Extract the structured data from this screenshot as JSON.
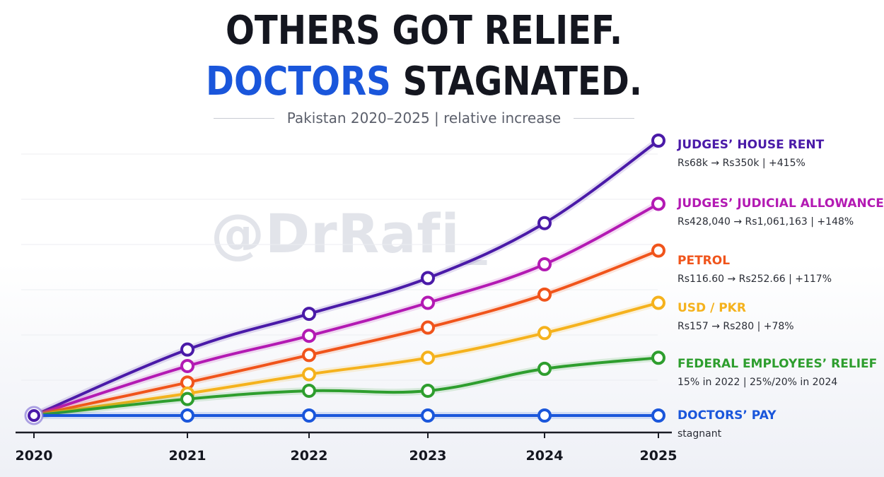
{
  "title": {
    "line1": "OTHERS GOT RELIEF.",
    "line2_highlight": "DOCTORS",
    "line2_rest": " STAGNATED."
  },
  "subtitle": "Pakistan 2020–2025 | relative increase",
  "watermark": "@DrRafi_",
  "colors": {
    "title": "#14161f",
    "highlight": "#1a56db",
    "axis": "#1b1d26"
  },
  "chart_data": {
    "type": "line",
    "title": "OTHERS GOT RELIEF. DOCTORS STAGNATED.",
    "subtitle": "Pakistan 2020–2025 | relative increase",
    "x": [
      "2020",
      "2021",
      "2022",
      "2023",
      "2024",
      "2025"
    ],
    "ylim": [
      0,
      100
    ],
    "grid": true,
    "legend_placement": "right",
    "series": [
      {
        "name": "JUDGES’ HOUSE RENT",
        "desc": "Rs68k → Rs350k | +415%",
        "color": "#4a1aa8",
        "values": [
          0,
          24,
          37,
          50,
          70,
          100
        ]
      },
      {
        "name": "JUDGES’ JUDICIAL ALLOWANCE",
        "desc": "Rs428,040 → Rs1,061,163 | +148%",
        "color": "#b31ab3",
        "values": [
          0,
          18,
          29,
          41,
          55,
          77
        ]
      },
      {
        "name": "PETROL",
        "desc": "Rs116.60 → Rs252.66 | +117%",
        "color": "#f0541b",
        "values": [
          0,
          12,
          22,
          32,
          44,
          60
        ]
      },
      {
        "name": "USD / PKR",
        "desc": "Rs157 → Rs280 | +78%",
        "color": "#f5b21d",
        "values": [
          0,
          8,
          15,
          21,
          30,
          41
        ]
      },
      {
        "name": "FEDERAL EMPLOYEES’ RELIEF",
        "desc": "15% in 2022 | 25%/20% in 2024",
        "color": "#2e9e2e",
        "values": [
          0,
          6,
          9,
          9,
          17,
          21
        ]
      },
      {
        "name": "DOCTORS’ PAY",
        "desc": "stagnant",
        "color": "#1a56db",
        "values": [
          0,
          0,
          0,
          0,
          0,
          0
        ]
      }
    ]
  }
}
